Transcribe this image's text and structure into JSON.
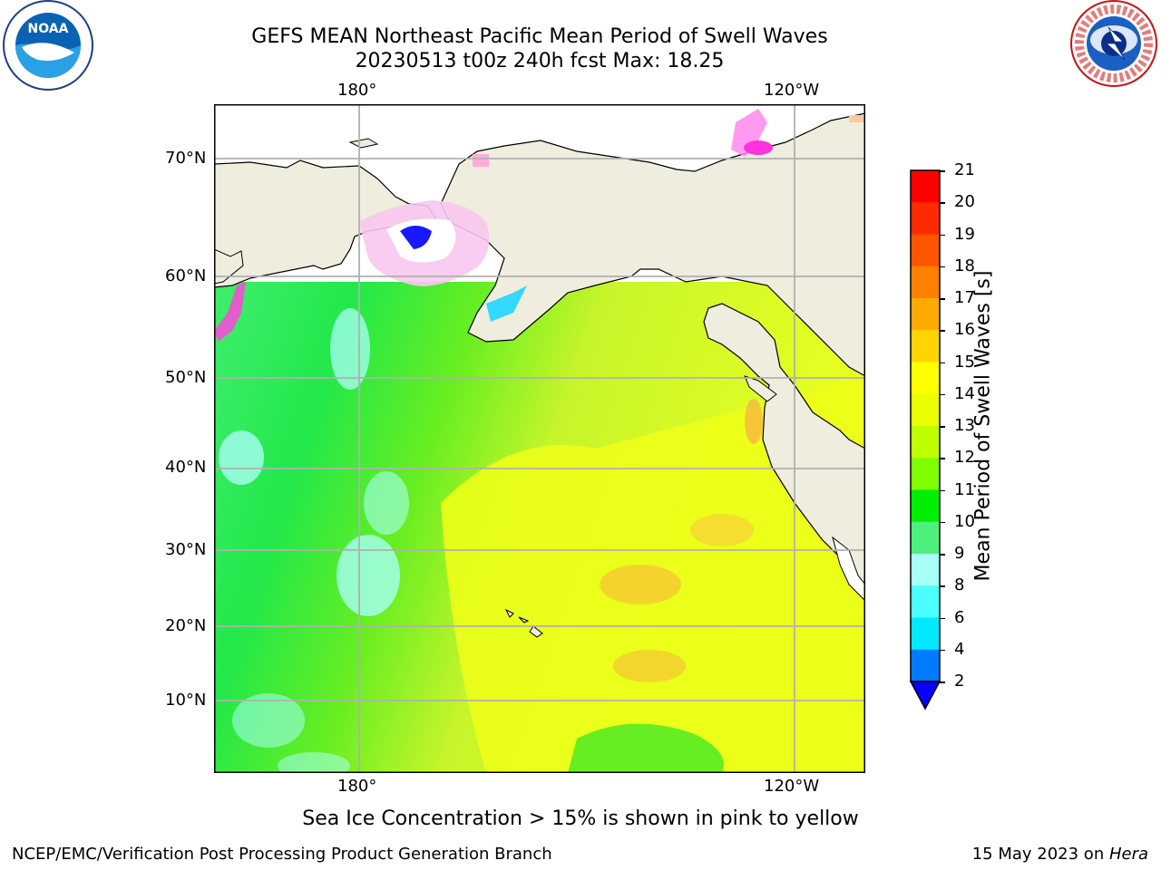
{
  "header": {
    "title_line1": "GEFS MEAN Northeast Pacific Mean Period of Swell Waves",
    "title_line2": "20230513 t00z 240h fcst   Max: 18.25"
  },
  "logos": {
    "left": {
      "icon": "noaa-logo",
      "text": "NOAA"
    },
    "right": {
      "icon": "nws-logo",
      "text": "NATIONAL WEATHER SERVICE"
    }
  },
  "map": {
    "lon_labels": [
      "180°",
      "120°W"
    ],
    "lat_labels": [
      "70°N",
      "60°N",
      "50°N",
      "40°N",
      "30°N",
      "20°N",
      "10°N"
    ],
    "colors": {
      "land": "#efedde",
      "coast": "#000000",
      "grid": "#b0b0b0"
    }
  },
  "colorbar": {
    "label": "Mean Period of Swell Waves [s]",
    "ticks": [
      "21",
      "20",
      "19",
      "18",
      "17",
      "16",
      "15",
      "14",
      "13",
      "12",
      "11",
      "10",
      "9",
      "8",
      "6",
      "4",
      "2"
    ],
    "colors": [
      "#ff0000",
      "#ff2a00",
      "#ff5500",
      "#ff8000",
      "#ffaa00",
      "#ffd400",
      "#ffff00",
      "#eaff00",
      "#c0ff00",
      "#80ff00",
      "#00ee00",
      "#4cf07c",
      "#a8fff5",
      "#4bffff",
      "#00e9ff",
      "#007bff"
    ],
    "under_color": "#0a00ff"
  },
  "footer": {
    "note": "Sea Ice Concentration > 15% is shown in pink to yellow",
    "credit": "NCEP/EMC/Verification Post Processing Product Generation Branch",
    "date_prefix": "15 May 2023 on ",
    "machine": "Hera"
  }
}
